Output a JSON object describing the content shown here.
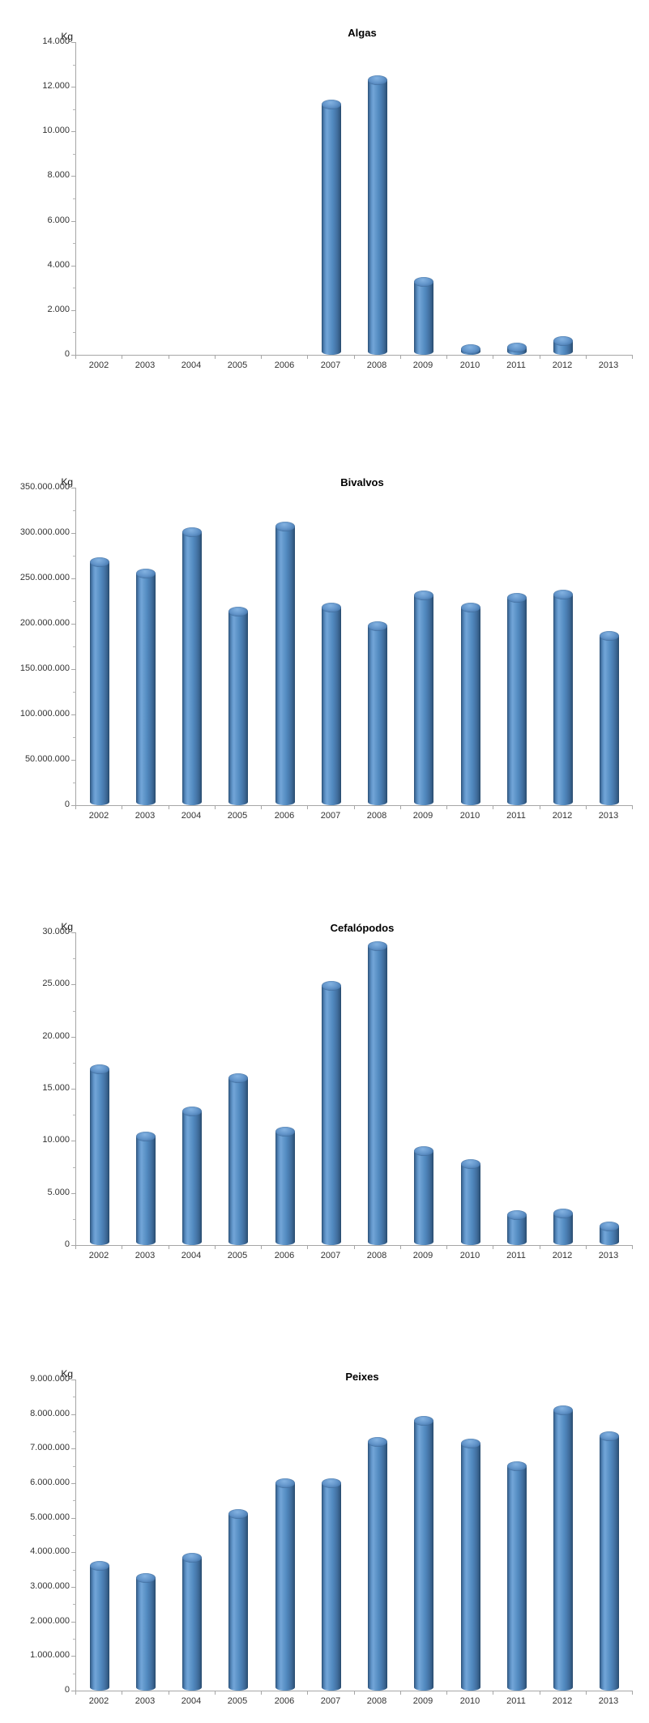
{
  "page": {
    "unit_label": "Kg",
    "bar_color": "#4F81BD",
    "bar_highlight_color": "#72A5D8",
    "bar_edge_color": "#27486B",
    "axis_color": "#A6A6A6",
    "text_color": "#333333"
  },
  "chart_data": [
    {
      "type": "bar",
      "title": "Algas",
      "ylabel": "Kg",
      "xlabel": "",
      "legend": "none",
      "grid": false,
      "categories": [
        "2002",
        "2003",
        "2004",
        "2005",
        "2006",
        "2007",
        "2008",
        "2009",
        "2010",
        "2011",
        "2012",
        "2013"
      ],
      "values": [
        0,
        0,
        0,
        0,
        0,
        11200,
        12300,
        3250,
        250,
        320,
        620,
        0
      ],
      "ylim": [
        0,
        14000
      ],
      "ytick_step": 2000,
      "ytick_labels": [
        "14.000",
        "12.000",
        "10.000",
        "8.000",
        "6.000",
        "4.000",
        "2.000",
        "0"
      ]
    },
    {
      "type": "bar",
      "title": "Bivalvos",
      "ylabel": "Kg",
      "xlabel": "",
      "legend": "none",
      "grid": false,
      "categories": [
        "2002",
        "2003",
        "2004",
        "2005",
        "2006",
        "2007",
        "2008",
        "2009",
        "2010",
        "2011",
        "2012",
        "2013"
      ],
      "values": [
        268000000,
        255000000,
        301000000,
        213000000,
        307000000,
        218000000,
        197000000,
        231000000,
        218000000,
        229000000,
        232000000,
        187000000
      ],
      "ylim": [
        0,
        350000000
      ],
      "ytick_step": 50000000,
      "ytick_labels": [
        "350.000.000",
        "300.000.000",
        "250.000.000",
        "200.000.000",
        "150.000.000",
        "100.000.000",
        "50.000.000",
        "0"
      ]
    },
    {
      "type": "bar",
      "title": "Cefalópodos",
      "ylabel": "Kg",
      "xlabel": "",
      "legend": "none",
      "grid": false,
      "categories": [
        "2002",
        "2003",
        "2004",
        "2005",
        "2006",
        "2007",
        "2008",
        "2009",
        "2010",
        "2011",
        "2012",
        "2013"
      ],
      "values": [
        16900,
        10400,
        12800,
        16000,
        10900,
        24900,
        28700,
        9000,
        7800,
        2900,
        3000,
        1800
      ],
      "ylim": [
        0,
        30000
      ],
      "ytick_step": 5000,
      "ytick_labels": [
        "30.000",
        "25.000",
        "20.000",
        "15.000",
        "10.000",
        "5.000",
        "0"
      ]
    },
    {
      "type": "bar",
      "title": "Peixes",
      "ylabel": "Kg",
      "xlabel": "",
      "legend": "none",
      "grid": false,
      "categories": [
        "2002",
        "2003",
        "2004",
        "2005",
        "2006",
        "2007",
        "2008",
        "2009",
        "2010",
        "2011",
        "2012",
        "2013"
      ],
      "values": [
        3600000,
        3250000,
        3850000,
        5100000,
        6000000,
        6000000,
        7200000,
        7800000,
        7150000,
        6500000,
        8100000,
        7350000
      ],
      "ylim": [
        0,
        9000000
      ],
      "ytick_step": 1000000,
      "ytick_labels": [
        "9.000.000",
        "8.000.000",
        "7.000.000",
        "6.000.000",
        "5.000.000",
        "4.000.000",
        "3.000.000",
        "2.000.000",
        "1.000.000",
        "0"
      ]
    }
  ]
}
